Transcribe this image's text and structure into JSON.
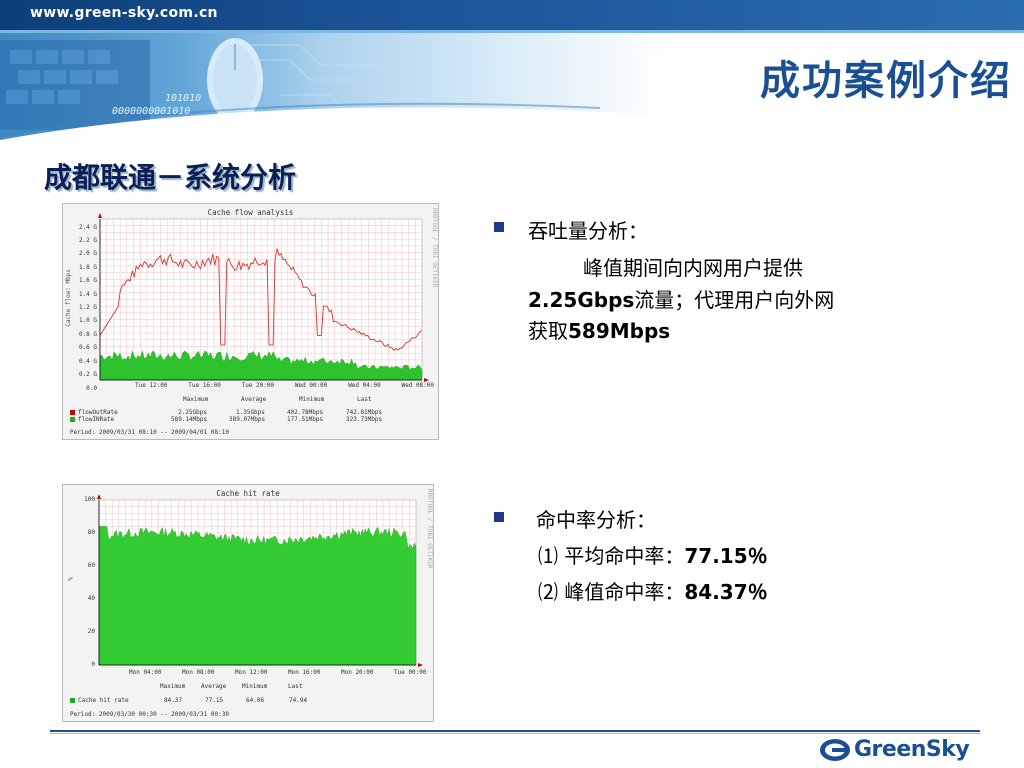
{
  "header": {
    "site_url": "www.green-sky.com.cn",
    "title": "成功案例介绍",
    "deco_digits_1": "101010",
    "deco_digits_2": "0000000001010"
  },
  "section": {
    "heading": "成都联通－系统分析"
  },
  "graph1": {
    "title": "Cache flow analysis",
    "ylabel": "Cache flow: Mbps",
    "side_text": "RRDTOOL / TOBI OETIKER",
    "y_ticks": [
      "2.4 G",
      "2.2 G",
      "2.0 G",
      "1.8 G",
      "1.6 G",
      "1.4 G",
      "1.2 G",
      "1.0 G",
      "0.8 G",
      "0.6 G",
      "0.4 G",
      "0.2 G",
      "0.0"
    ],
    "x_ticks": [
      "Tue 12:00",
      "Tue 16:00",
      "Tue 20:00",
      "Wed 00:00",
      "Wed 04:00",
      "Wed 08:00"
    ],
    "stats_header": [
      "Maximum",
      "Average",
      "Minimum",
      "Last"
    ],
    "rows": [
      {
        "name": "flowOutRate",
        "color": "#cc0000",
        "values": [
          "2.25Gbps",
          "1.35Gbps",
          "402.78Mbps",
          "742.81Mbps"
        ]
      },
      {
        "name": "flowINRate",
        "color": "#22aa22",
        "values": [
          "589.14Mbps",
          "389.07Mbps",
          "177.51Mbps",
          "323.73Mbps"
        ]
      }
    ],
    "period": "Period: 2009/03/31 08:10 -- 2009/04/01 08:10"
  },
  "graph2": {
    "title": "Cache hit rate",
    "ylabel": "%",
    "side_text": "RRDTOOL / TOBI OETIKER",
    "y_ticks": [
      "100",
      "80",
      "60",
      "40",
      "20",
      "0"
    ],
    "x_ticks": [
      "Mon 04:00",
      "Mon 08:00",
      "Mon 12:00",
      "Mon 16:00",
      "Mon 20:00",
      "Tue 00:00"
    ],
    "stats_header": [
      "Maximum",
      "Average",
      "Minimum",
      "Last"
    ],
    "rows": [
      {
        "name": "Cache hit rate",
        "color": "#22aa22",
        "values": [
          "84.37",
          "77.15",
          "64.06",
          "74.94"
        ]
      }
    ],
    "period": "Period: 2009/03/30 00:30 -- 2009/03/31 00:30"
  },
  "analysis": {
    "throughput_heading": "吞吐量分析：",
    "throughput_line1": "峰值期间向内网用户提供",
    "throughput_line2_num": "2.25Gbps",
    "throughput_line2_text": "流量；代理用户向外网",
    "throughput_line3_text": "获取",
    "throughput_line3_num": "589Mbps",
    "hit_heading": "命中率分析：",
    "hit_item1_prefix": "⑴ 平均命中率：",
    "hit_item1_value": "77.15％",
    "hit_item2_prefix": "⑵ 峰值命中率：",
    "hit_item2_value": "84.37％"
  },
  "footer": {
    "logo_text": "GreenSky"
  },
  "colors": {
    "brand_blue": "#1b4f93",
    "flow_out": "#cc0000",
    "flow_in": "#22aa22",
    "bullet": "#1f3a8a"
  }
}
